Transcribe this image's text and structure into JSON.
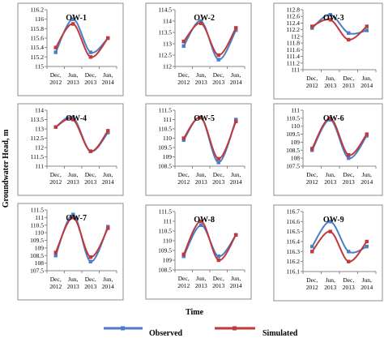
{
  "y_axis_label": "Groundwater Head, m",
  "x_axis_label": "Time",
  "legend": {
    "observed": "Observed",
    "simulated": "Simulated"
  },
  "colors": {
    "observed": "#4a7ec8",
    "simulated": "#c0393b",
    "frame": "#8c8c8c",
    "axis": "#888888"
  },
  "chart_data": [
    {
      "type": "line",
      "title": "OW-1",
      "categories": [
        [
          "Dec,",
          "2012"
        ],
        [
          "Jun,",
          "2013"
        ],
        [
          "Dec,",
          "2013"
        ],
        [
          "Jun,",
          "2014"
        ]
      ],
      "ylim": [
        115,
        116.2
      ],
      "yticks": [
        "115",
        "115.2",
        "115.4",
        "115.6",
        "115.8",
        "116",
        "116.2"
      ],
      "series": [
        {
          "name": "Observed",
          "values": [
            115.3,
            116.0,
            115.3,
            115.6
          ]
        },
        {
          "name": "Simulated",
          "values": [
            115.4,
            115.9,
            115.2,
            115.6
          ]
        }
      ]
    },
    {
      "type": "line",
      "title": "OW-2",
      "categories": [
        [
          "Dec,",
          "2012"
        ],
        [
          "Jun,",
          "2013"
        ],
        [
          "Dec,",
          "2013"
        ],
        [
          "Jun,",
          "2014"
        ]
      ],
      "ylim": [
        112,
        114.5
      ],
      "yticks": [
        "112",
        "112.5",
        "113",
        "113.5",
        "114",
        "114.5"
      ],
      "series": [
        {
          "name": "Observed",
          "values": [
            112.9,
            114.0,
            112.3,
            113.6
          ]
        },
        {
          "name": "Simulated",
          "values": [
            113.1,
            113.9,
            112.5,
            113.7
          ]
        }
      ]
    },
    {
      "type": "line",
      "title": "OW-3",
      "categories": [
        [
          "Dec,",
          "2012"
        ],
        [
          "Jun,",
          "2013"
        ],
        [
          "Dec,",
          "2013"
        ],
        [
          "Jun,",
          "2014"
        ]
      ],
      "ylim": [
        111,
        112.8
      ],
      "yticks": [
        "111",
        "111.2",
        "111.4",
        "111.6",
        "111.8",
        "112",
        "112.2",
        "112.4",
        "112.6",
        "112.8"
      ],
      "series": [
        {
          "name": "Observed",
          "values": [
            112.25,
            112.65,
            112.1,
            112.18
          ]
        },
        {
          "name": "Simulated",
          "values": [
            112.3,
            112.5,
            111.9,
            112.3
          ]
        }
      ]
    },
    {
      "type": "line",
      "title": "OW-4",
      "categories": [
        [
          "Dec,",
          "2012"
        ],
        [
          "Jun,",
          "2013"
        ],
        [
          "Dec,",
          "2013"
        ],
        [
          "Jun,",
          "2014"
        ]
      ],
      "ylim": [
        111,
        114
      ],
      "yticks": [
        "111",
        "111.5",
        "112",
        "112.5",
        "113",
        "113.5",
        "114"
      ],
      "series": [
        {
          "name": "Observed",
          "values": [
            113.1,
            113.6,
            111.8,
            112.8
          ]
        },
        {
          "name": "Simulated",
          "values": [
            113.1,
            113.5,
            111.8,
            112.9
          ]
        }
      ]
    },
    {
      "type": "line",
      "title": "OW-5",
      "categories": [
        [
          "Dec,",
          "2012"
        ],
        [
          "Jun,",
          "2013"
        ],
        [
          "Dec,",
          "2013"
        ],
        [
          "Jun,",
          "2014"
        ]
      ],
      "ylim": [
        108.5,
        111.5
      ],
      "yticks": [
        "108.5",
        "109",
        "109.5",
        "110",
        "110.5",
        "111",
        "111.5"
      ],
      "series": [
        {
          "name": "Observed",
          "values": [
            109.9,
            111.1,
            108.7,
            111.0
          ]
        },
        {
          "name": "Simulated",
          "values": [
            110.0,
            111.1,
            108.9,
            110.9
          ]
        }
      ]
    },
    {
      "type": "line",
      "title": "OW-6",
      "categories": [
        [
          "Dec,",
          "2012"
        ],
        [
          "Jun,",
          "2013"
        ],
        [
          "Dec,",
          "2013"
        ],
        [
          "Jun,",
          "2014"
        ]
      ],
      "ylim": [
        107.5,
        111
      ],
      "yticks": [
        "107.5",
        "108",
        "108.5",
        "109",
        "109.5",
        "110",
        "110.5",
        "111"
      ],
      "series": [
        {
          "name": "Observed",
          "values": [
            108.5,
            110.4,
            108.0,
            109.4
          ]
        },
        {
          "name": "Simulated",
          "values": [
            108.6,
            110.5,
            108.2,
            109.5
          ]
        }
      ]
    },
    {
      "type": "line",
      "title": "OW-7",
      "categories": [
        [
          "Dec,",
          "2012"
        ],
        [
          "Jun,",
          "2013"
        ],
        [
          "Dec,",
          "2013"
        ],
        [
          "Jun,",
          "2014"
        ]
      ],
      "ylim": [
        107.5,
        111.5
      ],
      "yticks": [
        "107.5",
        "108",
        "108.5",
        "109",
        "109.5",
        "110",
        "110.5",
        "111",
        "111.5"
      ],
      "series": [
        {
          "name": "Observed",
          "values": [
            108.5,
            111.2,
            108.1,
            110.4
          ]
        },
        {
          "name": "Simulated",
          "values": [
            108.7,
            111.0,
            108.4,
            110.3
          ]
        }
      ]
    },
    {
      "type": "line",
      "title": "OW-8",
      "categories": [
        [
          "Dec,",
          "2012"
        ],
        [
          "Jun,",
          "2013"
        ],
        [
          "Dec,",
          "2013"
        ],
        [
          "Jun,",
          "2014"
        ]
      ],
      "ylim": [
        108.5,
        111.5
      ],
      "yticks": [
        "108.5",
        "109",
        "109.5",
        "110",
        "110.5",
        "111",
        "111.5"
      ],
      "series": [
        {
          "name": "Observed",
          "values": [
            109.2,
            110.8,
            109.2,
            110.3
          ]
        },
        {
          "name": "Simulated",
          "values": [
            109.3,
            111.0,
            109.0,
            110.3
          ]
        }
      ]
    },
    {
      "type": "line",
      "title": "OW-9",
      "categories": [
        [
          "Dec,",
          "2012"
        ],
        [
          "Jun,",
          "2013"
        ],
        [
          "Dec,",
          "2013"
        ],
        [
          "Jun,",
          "2014"
        ]
      ],
      "ylim": [
        116.1,
        116.7
      ],
      "yticks": [
        "116.1",
        "116.2",
        "116.3",
        "116.4",
        "116.5",
        "116.6",
        "116.7"
      ],
      "series": [
        {
          "name": "Observed",
          "values": [
            116.35,
            116.6,
            116.3,
            116.35
          ]
        },
        {
          "name": "Simulated",
          "values": [
            116.3,
            116.5,
            116.2,
            116.4
          ]
        }
      ]
    }
  ]
}
